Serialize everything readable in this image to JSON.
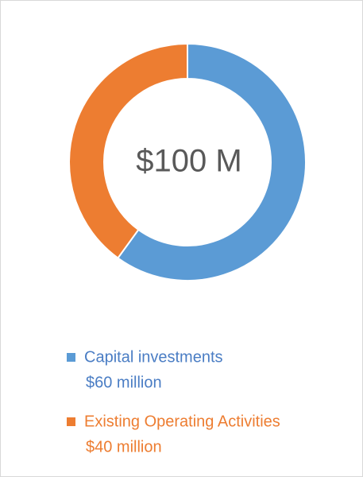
{
  "chart_data": {
    "type": "donut",
    "center_label": "$100 M",
    "categories": [
      "Capital investments",
      "Existing Operating Activities"
    ],
    "values": [
      60,
      40
    ],
    "value_labels": [
      "$60 million",
      "$40 million"
    ],
    "colors": [
      "#5b9bd5",
      "#ed7d31"
    ],
    "text_colors": [
      "#4a7dc4",
      "#ed7d31"
    ]
  }
}
